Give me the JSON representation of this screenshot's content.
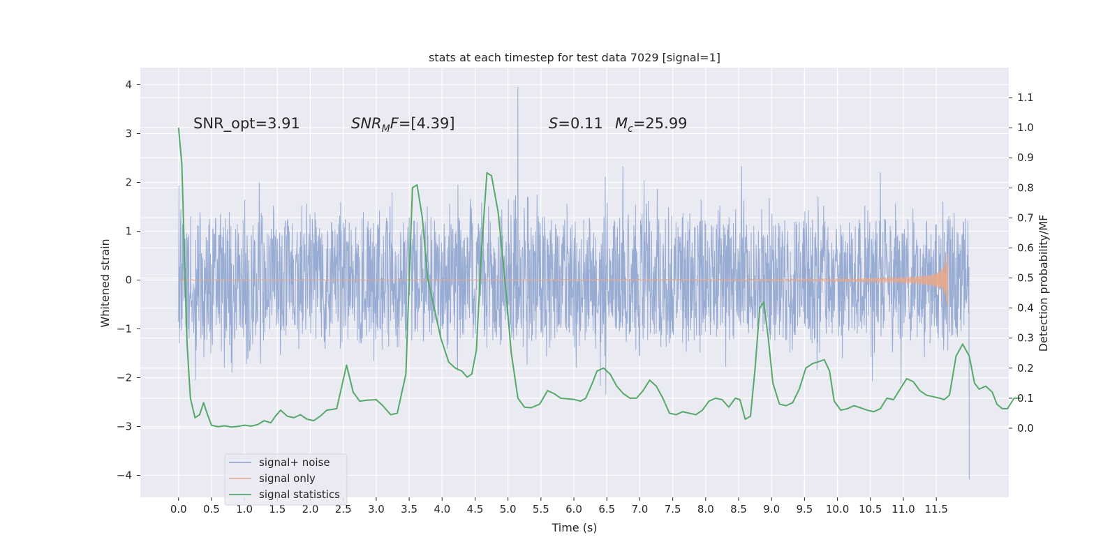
{
  "chart_data": {
    "type": "line",
    "title": "stats at each timestep for test data 7029 [signal=1]",
    "xlabel": "Time (s)",
    "ylabel": "Whitened strain",
    "ylabel_right": "Detection probability/MF",
    "xlim": [
      -0.58,
      12.6
    ],
    "ylim": [
      -4.45,
      4.35
    ],
    "ylim_right": [
      -0.23,
      1.2
    ],
    "x_ticks": [
      "0.0",
      "0.5",
      "1.0",
      "1.5",
      "2.0",
      "2.5",
      "3.0",
      "3.5",
      "4.0",
      "4.5",
      "5.0",
      "5.5",
      "6.0",
      "6.5",
      "7.0",
      "7.5",
      "8.0",
      "8.5",
      "9.0",
      "9.5",
      "10.0",
      "10.5",
      "11.0",
      "11.5"
    ],
    "y_ticks": [
      "4",
      "3",
      "2",
      "1",
      "0",
      "−1",
      "−2",
      "−3",
      "−4"
    ],
    "y_ticks_right": [
      "1.1",
      "1.0",
      "0.9",
      "0.8",
      "0.7",
      "0.6",
      "0.5",
      "0.4",
      "0.3",
      "0.2",
      "0.1",
      "0.0"
    ],
    "grid": true,
    "annotations": {
      "snr_opt": "SNR_opt=3.91",
      "snr_mf_italic": "SNR",
      "snr_mf_sub": "M",
      "snr_mf_italic2": "F",
      "snr_mf_value": "=[4.39]",
      "s_italic": "S",
      "s_value": "=0.11",
      "mc_italic": "M",
      "mc_sub": "c",
      "mc_value": "=25.99"
    },
    "legend": {
      "position": "lower-left",
      "entries": [
        {
          "label": "signal+ noise",
          "color": "#8da0cb"
        },
        {
          "label": "signal only",
          "color": "#e8a98b"
        },
        {
          "label": "signal statistics",
          "color": "#55a868"
        }
      ]
    },
    "series": [
      {
        "name": "signal+ noise",
        "axis": "left",
        "color": "#92a8d1",
        "t_range": [
          0.0,
          12.0
        ],
        "core_range": [
          -1.25,
          1.25
        ],
        "envelope_range": [
          -3.5,
          3.5
        ],
        "max_point": [
          5.15,
          3.95
        ],
        "min_point": [
          11.99,
          -4.08
        ]
      },
      {
        "name": "signal only",
        "axis": "left",
        "color": "#e8a98b",
        "t_range": [
          0.0,
          11.68
        ],
        "peak_amplitude": 0.85
      },
      {
        "name": "signal statistics",
        "axis": "right",
        "color": "#55a868",
        "points": [
          [
            0.0,
            1.0
          ],
          [
            0.05,
            0.88
          ],
          [
            0.1,
            0.5
          ],
          [
            0.13,
            0.28
          ],
          [
            0.18,
            0.1
          ],
          [
            0.25,
            0.035
          ],
          [
            0.32,
            0.045
          ],
          [
            0.38,
            0.085
          ],
          [
            0.44,
            0.045
          ],
          [
            0.5,
            0.01
          ],
          [
            0.6,
            0.005
          ],
          [
            0.7,
            0.008
          ],
          [
            0.8,
            0.004
          ],
          [
            0.9,
            0.006
          ],
          [
            1.0,
            0.01
          ],
          [
            1.1,
            0.007
          ],
          [
            1.2,
            0.012
          ],
          [
            1.3,
            0.025
          ],
          [
            1.4,
            0.018
          ],
          [
            1.47,
            0.04
          ],
          [
            1.55,
            0.06
          ],
          [
            1.65,
            0.04
          ],
          [
            1.75,
            0.035
          ],
          [
            1.85,
            0.045
          ],
          [
            1.95,
            0.03
          ],
          [
            2.05,
            0.025
          ],
          [
            2.15,
            0.04
          ],
          [
            2.25,
            0.06
          ],
          [
            2.4,
            0.065
          ],
          [
            2.55,
            0.21
          ],
          [
            2.65,
            0.12
          ],
          [
            2.75,
            0.09
          ],
          [
            2.85,
            0.093
          ],
          [
            3.0,
            0.095
          ],
          [
            3.1,
            0.075
          ],
          [
            3.22,
            0.045
          ],
          [
            3.32,
            0.05
          ],
          [
            3.45,
            0.18
          ],
          [
            3.55,
            0.8
          ],
          [
            3.62,
            0.81
          ],
          [
            3.7,
            0.7
          ],
          [
            3.78,
            0.5
          ],
          [
            3.88,
            0.4
          ],
          [
            3.98,
            0.3
          ],
          [
            4.1,
            0.22
          ],
          [
            4.2,
            0.2
          ],
          [
            4.3,
            0.19
          ],
          [
            4.38,
            0.17
          ],
          [
            4.45,
            0.18
          ],
          [
            4.52,
            0.26
          ],
          [
            4.6,
            0.6
          ],
          [
            4.68,
            0.85
          ],
          [
            4.75,
            0.84
          ],
          [
            4.85,
            0.72
          ],
          [
            4.95,
            0.5
          ],
          [
            5.05,
            0.25
          ],
          [
            5.15,
            0.1
          ],
          [
            5.25,
            0.07
          ],
          [
            5.35,
            0.068
          ],
          [
            5.48,
            0.08
          ],
          [
            5.6,
            0.125
          ],
          [
            5.7,
            0.115
          ],
          [
            5.8,
            0.1
          ],
          [
            5.9,
            0.098
          ],
          [
            6.0,
            0.096
          ],
          [
            6.1,
            0.09
          ],
          [
            6.18,
            0.1
          ],
          [
            6.28,
            0.15
          ],
          [
            6.35,
            0.19
          ],
          [
            6.45,
            0.2
          ],
          [
            6.55,
            0.18
          ],
          [
            6.65,
            0.14
          ],
          [
            6.75,
            0.115
          ],
          [
            6.85,
            0.1
          ],
          [
            6.95,
            0.1
          ],
          [
            7.05,
            0.125
          ],
          [
            7.15,
            0.16
          ],
          [
            7.25,
            0.14
          ],
          [
            7.35,
            0.1
          ],
          [
            7.45,
            0.05
          ],
          [
            7.55,
            0.045
          ],
          [
            7.65,
            0.055
          ],
          [
            7.75,
            0.05
          ],
          [
            7.85,
            0.045
          ],
          [
            7.95,
            0.06
          ],
          [
            8.05,
            0.09
          ],
          [
            8.15,
            0.1
          ],
          [
            8.25,
            0.095
          ],
          [
            8.35,
            0.07
          ],
          [
            8.45,
            0.1
          ],
          [
            8.52,
            0.095
          ],
          [
            8.6,
            0.03
          ],
          [
            8.68,
            0.04
          ],
          [
            8.75,
            0.2
          ],
          [
            8.82,
            0.4
          ],
          [
            8.88,
            0.42
          ],
          [
            8.95,
            0.3
          ],
          [
            9.02,
            0.15
          ],
          [
            9.12,
            0.08
          ],
          [
            9.22,
            0.075
          ],
          [
            9.32,
            0.085
          ],
          [
            9.42,
            0.13
          ],
          [
            9.52,
            0.2
          ],
          [
            9.62,
            0.215
          ],
          [
            9.72,
            0.222
          ],
          [
            9.8,
            0.228
          ],
          [
            9.88,
            0.19
          ],
          [
            9.95,
            0.09
          ],
          [
            10.05,
            0.06
          ],
          [
            10.15,
            0.065
          ],
          [
            10.25,
            0.075
          ],
          [
            10.35,
            0.068
          ],
          [
            10.45,
            0.06
          ],
          [
            10.55,
            0.055
          ],
          [
            10.65,
            0.065
          ],
          [
            10.75,
            0.1
          ],
          [
            10.85,
            0.095
          ],
          [
            10.95,
            0.13
          ],
          [
            11.05,
            0.165
          ],
          [
            11.15,
            0.155
          ],
          [
            11.25,
            0.125
          ],
          [
            11.35,
            0.11
          ],
          [
            11.45,
            0.105
          ],
          [
            11.55,
            0.1
          ],
          [
            11.62,
            0.095
          ],
          [
            11.7,
            0.11
          ],
          [
            11.8,
            0.24
          ],
          [
            11.9,
            0.28
          ],
          [
            12.0,
            0.24
          ],
          [
            12.08,
            0.15
          ],
          [
            12.15,
            0.13
          ],
          [
            12.25,
            0.14
          ],
          [
            12.35,
            0.12
          ],
          [
            12.42,
            0.08
          ],
          [
            12.5,
            0.065
          ],
          [
            12.58,
            0.065
          ],
          [
            12.68,
            0.1
          ],
          [
            12.78,
            0.1
          ]
        ]
      }
    ]
  }
}
